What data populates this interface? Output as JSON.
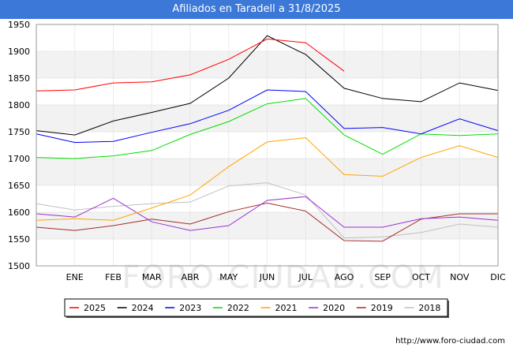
{
  "colors": {
    "title_bg": "#3c78d8",
    "band": "#f2f2f2",
    "grid": "#d9d9d9"
  },
  "watermark": "FORO-CIUDAD.COM",
  "credit": "http://www.foro-ciudad.com",
  "chart_data": {
    "type": "line",
    "title": "Afiliados en Taradell a 31/8/2025",
    "xlabel": "",
    "ylabel": "",
    "categories": [
      "",
      "ENE",
      "FEB",
      "MAR",
      "ABR",
      "MAY",
      "JUN",
      "JUL",
      "AGO",
      "SEP",
      "OCT",
      "NOV",
      "DIC"
    ],
    "yticks": [
      1500,
      1550,
      1600,
      1650,
      1700,
      1750,
      1800,
      1850,
      1900,
      1950
    ],
    "ylim": [
      1500,
      1950
    ],
    "grid": true,
    "legend_position": "bottom",
    "series": [
      {
        "name": "2025",
        "color": "#ff0000",
        "values": [
          1826,
          1828,
          1841,
          1843,
          1856,
          1885,
          1923,
          1916,
          1863,
          null,
          null,
          null,
          null
        ]
      },
      {
        "name": "2024",
        "color": "#000000",
        "values": [
          1752,
          1744,
          1770,
          1786,
          1803,
          1850,
          1929,
          1894,
          1831,
          1812,
          1806,
          1841,
          1827
        ]
      },
      {
        "name": "2023",
        "color": "#0000ff",
        "values": [
          1746,
          1730,
          1732,
          1749,
          1765,
          1790,
          1828,
          1825,
          1756,
          1758,
          1746,
          1774,
          1752
        ]
      },
      {
        "name": "2022",
        "color": "#00dd00",
        "values": [
          1702,
          1700,
          1705,
          1715,
          1745,
          1769,
          1802,
          1812,
          1744,
          1708,
          1746,
          1743,
          1746
        ]
      },
      {
        "name": "2021",
        "color": "#ffa500",
        "values": [
          1585,
          1588,
          1585,
          1608,
          1632,
          1685,
          1731,
          1739,
          1670,
          1667,
          1702,
          1724,
          1702
        ]
      },
      {
        "name": "2020",
        "color": "#9b30d0",
        "values": [
          1597,
          1591,
          1626,
          1582,
          1566,
          1575,
          1622,
          1629,
          1572,
          1572,
          1588,
          1591,
          1585
        ]
      },
      {
        "name": "2019",
        "color": "#a52a2a",
        "values": [
          1572,
          1566,
          1575,
          1587,
          1578,
          1601,
          1617,
          1602,
          1547,
          1546,
          1587,
          1597,
          1597
        ]
      },
      {
        "name": "2018",
        "color": "#c0c0c0",
        "values": [
          1616,
          1604,
          1611,
          1616,
          1619,
          1649,
          1655,
          1632,
          1552,
          1554,
          1562,
          1578,
          1572
        ]
      }
    ]
  }
}
